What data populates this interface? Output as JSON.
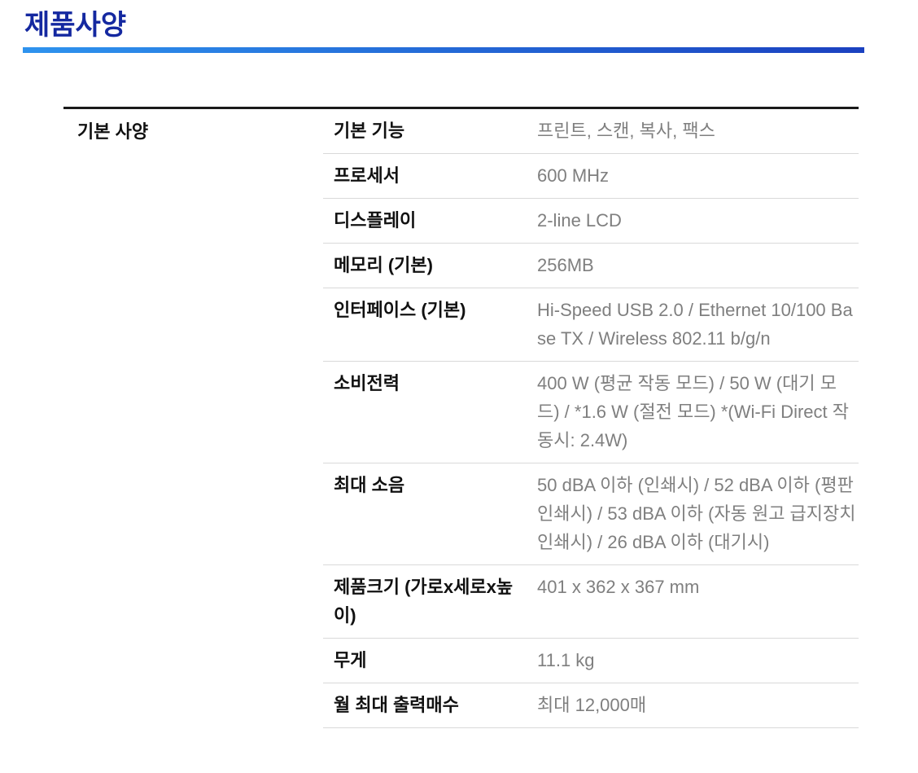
{
  "header": {
    "title": "제품사양"
  },
  "table": {
    "category": "기본 사양",
    "rows": [
      {
        "label": "기본 기능",
        "value": "프린트, 스캔, 복사, 팩스"
      },
      {
        "label": "프로세서",
        "value": "600 MHz"
      },
      {
        "label": "디스플레이",
        "value": "2-line LCD"
      },
      {
        "label": "메모리 (기본)",
        "value": "256MB"
      },
      {
        "label": "인터페이스 (기본)",
        "value": "Hi-Speed USB 2.0 / Ethernet 10/100 Base TX / Wireless 802.11 b/g/n"
      },
      {
        "label": "소비전력",
        "value": "400 W (평균 작동 모드) / 50 W (대기 모드) / *1.6 W (절전 모드) *(Wi-Fi Direct 작동시: 2.4W)"
      },
      {
        "label": "최대 소음",
        "value": "50 dBA 이하 (인쇄시) / 52 dBA 이하 (평판 인쇄시) / 53 dBA 이하 (자동 원고 급지장치 인쇄시) / 26 dBA 이하 (대기시)"
      },
      {
        "label": "제품크기 (가로x세로x높이)",
        "value": "401 x 362 x 367 mm"
      },
      {
        "label": "무게",
        "value": "11.1 kg"
      },
      {
        "label": "월 최대 출력매수",
        "value": "최대 12,000매"
      }
    ]
  },
  "colors": {
    "background": "#ffffff",
    "title_color": "#1428a0",
    "underline_start": "#2e93ee",
    "underline_end": "#1b41c0",
    "table_border": "#1a1a1a",
    "row_divider": "#d9d9d9",
    "label_color": "#111111",
    "value_color": "#7f7f7f"
  }
}
